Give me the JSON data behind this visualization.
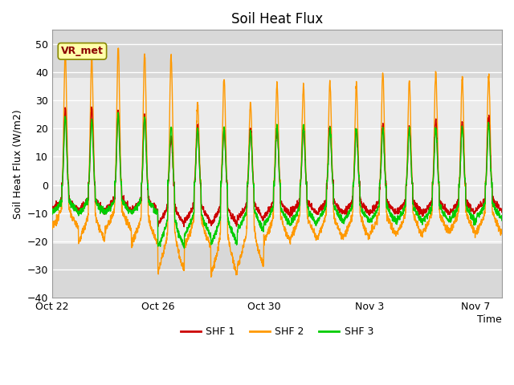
{
  "title": "Soil Heat Flux",
  "xlabel": "Time",
  "ylabel": "Soil Heat Flux (W/m2)",
  "ylim": [
    -40,
    55
  ],
  "yticks": [
    -40,
    -30,
    -20,
    -10,
    0,
    10,
    20,
    30,
    40,
    50
  ],
  "colors": {
    "SHF 1": "#cc0000",
    "SHF 2": "#ff9900",
    "SHF 3": "#00cc00"
  },
  "legend_labels": [
    "SHF 1",
    "SHF 2",
    "SHF 3"
  ],
  "annotation_text": "VR_met",
  "background_color": "#ffffff",
  "plot_bg_color": "#d8d8d8",
  "inner_band_color": "#ebebeb",
  "xtick_labels": [
    "Oct 22",
    "Oct 26",
    "Oct 30",
    "Nov 3",
    "Nov 7"
  ],
  "num_days": 17,
  "points_per_day": 144
}
